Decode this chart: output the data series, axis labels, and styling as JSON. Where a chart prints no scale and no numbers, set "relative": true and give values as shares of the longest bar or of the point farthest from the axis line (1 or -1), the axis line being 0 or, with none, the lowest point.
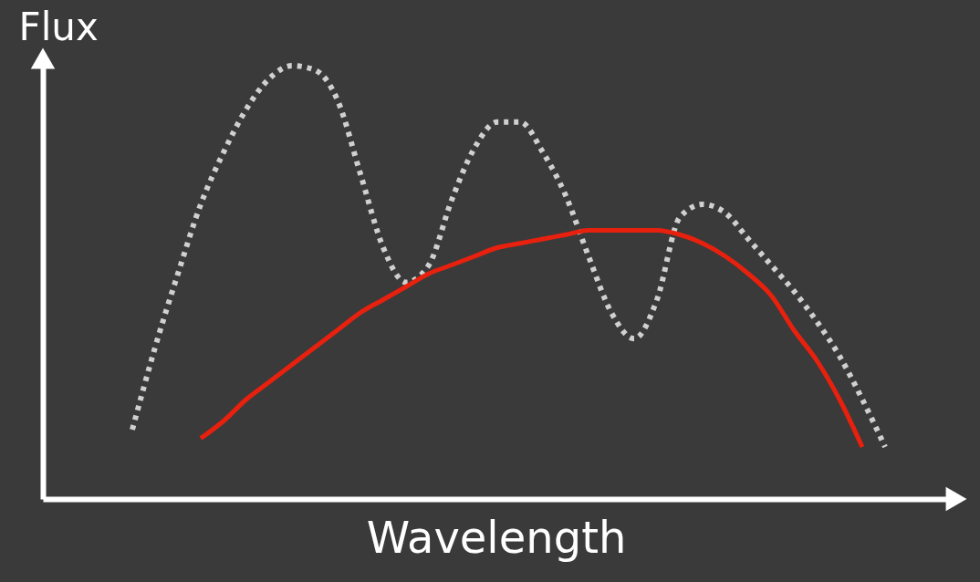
{
  "chart_data": {
    "type": "line",
    "xlabel": "Wavelength",
    "ylabel": "Flux",
    "relative": true,
    "grid": false,
    "categories": [
      null,
      null,
      null,
      null,
      null,
      null,
      null,
      null,
      null,
      null,
      null,
      null,
      null,
      null,
      null,
      null,
      null,
      null,
      null,
      null,
      null,
      null,
      null,
      null,
      null,
      null,
      null,
      null,
      null,
      null,
      null,
      null,
      null,
      null
    ],
    "series": [
      {
        "color": "#d0d0d0",
        "line_style": "dotted",
        "values": [
          0.16,
          0.35,
          0.52,
          0.68,
          0.8,
          0.9,
          0.97,
          1.0,
          0.99,
          0.92,
          0.75,
          0.58,
          0.5,
          0.54,
          0.69,
          0.81,
          0.87,
          0.87,
          0.8,
          0.7,
          0.56,
          0.43,
          0.37,
          0.46,
          0.65,
          0.68,
          0.66,
          0.6,
          0.54,
          0.48,
          0.41,
          0.33,
          0.23,
          0.12
        ]
      },
      {
        "color": "#e8200e",
        "line_style": "solid",
        "values": [
          null,
          null,
          null,
          0.14,
          0.18,
          0.23,
          0.27,
          0.31,
          0.35,
          0.39,
          0.43,
          0.46,
          0.49,
          0.52,
          0.54,
          0.56,
          0.58,
          0.59,
          0.6,
          0.61,
          0.62,
          0.62,
          0.62,
          0.62,
          0.61,
          0.59,
          0.56,
          0.52,
          0.47,
          0.39,
          0.32,
          0.23,
          0.12,
          null
        ]
      }
    ]
  }
}
